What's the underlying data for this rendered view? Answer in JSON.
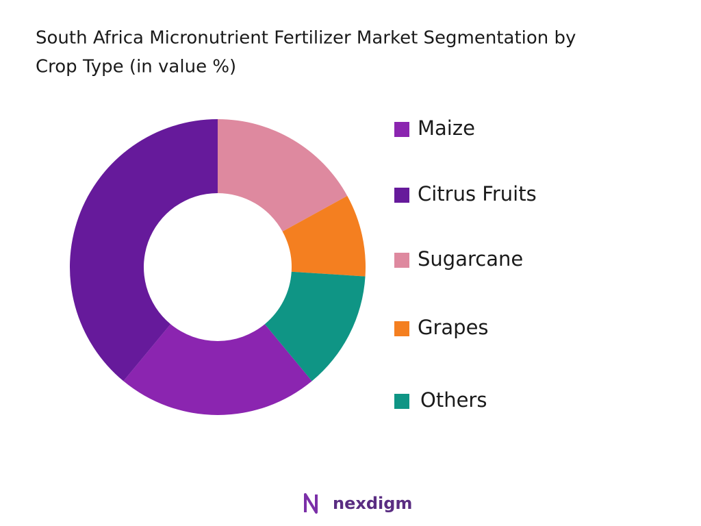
{
  "chart_data": {
    "type": "donut",
    "title": [
      "South Africa Micronutrient Fertilizer Market Segmentation by",
      "Crop Type (in value %)"
    ],
    "categories": [
      "Maize",
      "Citrus Fruits",
      "Sugarcane",
      "Grapes",
      "Others"
    ],
    "values": [
      22,
      39,
      17,
      9,
      13
    ],
    "colors": [
      "#8b25b0",
      "#661a9b",
      "#de899f",
      "#f47f20",
      "#0f9585"
    ],
    "legend": "right"
  },
  "brand": "nexdigm"
}
